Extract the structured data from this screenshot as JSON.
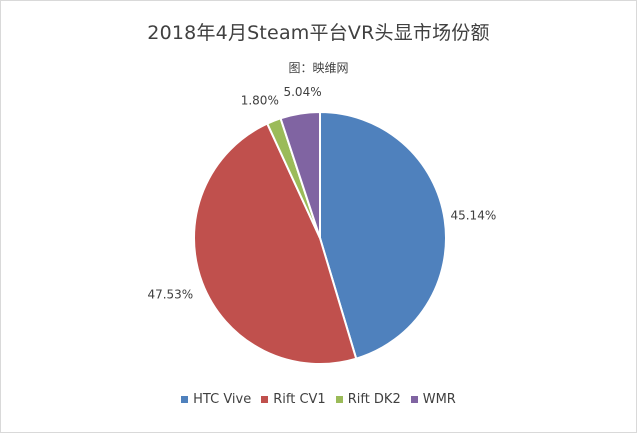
{
  "chart_data": {
    "type": "pie",
    "title": "2018年4月Steam平台VR头显市场份额",
    "subtitle": "图：映维网",
    "categories": [
      "HTC Vive",
      "Rift CV1",
      "Rift DK2",
      "WMR"
    ],
    "values": [
      45.14,
      47.53,
      1.8,
      5.04
    ],
    "labels": [
      "45.14%",
      "47.53%",
      "1.80%",
      "5.04%"
    ],
    "unit": "%",
    "colors": [
      "#4f81bd",
      "#c0504d",
      "#9bbb59",
      "#8064a2"
    ],
    "start_angle_deg": 0,
    "direction": "clockwise",
    "legend_position": "bottom"
  }
}
